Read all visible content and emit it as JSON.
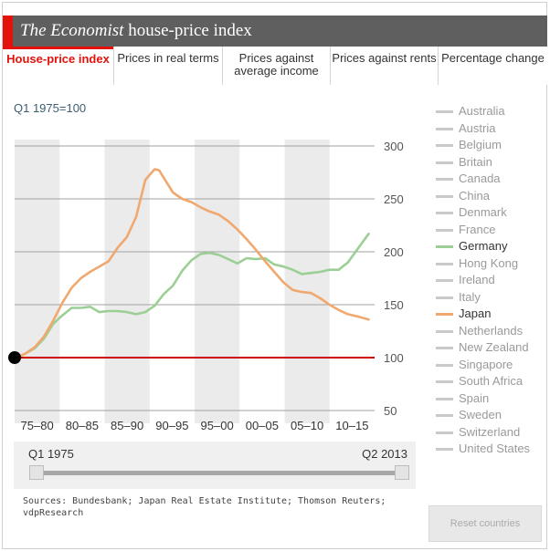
{
  "header": {
    "title_italic": "The Economist",
    "title_rest": " house-price index"
  },
  "tabs": [
    {
      "label": "House-price index",
      "active": true
    },
    {
      "label": "Prices in real terms",
      "active": false
    },
    {
      "label": "Prices against average income",
      "active": false
    },
    {
      "label": "Prices against rents",
      "active": false
    },
    {
      "label": "Percentage change",
      "active": false
    }
  ],
  "chart_data": {
    "type": "line",
    "ylabel": "Q1 1975=100",
    "yticks": [
      300,
      250,
      200,
      150,
      100,
      50
    ],
    "ylim": [
      50,
      300
    ],
    "xlim": [
      1975,
      2013.5
    ],
    "x_bands": [
      "75–80",
      "80–85",
      "85–90",
      "90–95",
      "95–00",
      "00–05",
      "05–10",
      "10–15"
    ],
    "grid": true,
    "baseline": 100,
    "series": [
      {
        "name": "Germany",
        "color": "#9ccf95",
        "x": [
          1975,
          1976,
          1977,
          1978,
          1979,
          1980,
          1981,
          1982,
          1983,
          1984,
          1985,
          1986,
          1987,
          1988,
          1989,
          1990,
          1991,
          1992,
          1993,
          1994,
          1995,
          1996,
          1997,
          1998,
          1999,
          2000,
          2001,
          2002,
          2003,
          2004,
          2005,
          2006,
          2007,
          2008,
          2009,
          2010,
          2011,
          2012,
          2012.5,
          2013.25
        ],
        "y": [
          100,
          104,
          109,
          118,
          132,
          140,
          147,
          147,
          148,
          143,
          144,
          144,
          143,
          141,
          143,
          149,
          160,
          168,
          182,
          192,
          198,
          199,
          197,
          193,
          189,
          194,
          193,
          194,
          188,
          186,
          183,
          179,
          180,
          181,
          183,
          183,
          190,
          202,
          208,
          217
        ]
      },
      {
        "name": "Japan",
        "color": "#f0a86f",
        "x": [
          1975,
          1976,
          1977,
          1978,
          1979,
          1980,
          1981,
          1982,
          1983,
          1984,
          1985,
          1986,
          1987,
          1988,
          1989,
          1990,
          1990.5,
          1991,
          1992,
          1993,
          1994,
          1995,
          1996,
          1997,
          1998,
          1999,
          2000,
          2001,
          2002,
          2003,
          2004,
          2005,
          2006,
          2007,
          2008,
          2009,
          2010,
          2011,
          2012,
          2013.25
        ],
        "y": [
          100,
          104,
          110,
          120,
          135,
          152,
          166,
          175,
          181,
          186,
          191,
          204,
          214,
          233,
          268,
          278,
          277,
          270,
          256,
          250,
          247,
          242,
          238,
          235,
          229,
          221,
          212,
          202,
          191,
          181,
          171,
          164,
          162,
          161,
          156,
          150,
          145,
          141,
          139,
          136
        ]
      }
    ]
  },
  "legend": [
    {
      "name": "Australia",
      "active": false,
      "color": "#c9c9c9"
    },
    {
      "name": "Austria",
      "active": false,
      "color": "#c9c9c9"
    },
    {
      "name": "Belgium",
      "active": false,
      "color": "#c9c9c9"
    },
    {
      "name": "Britain",
      "active": false,
      "color": "#c9c9c9"
    },
    {
      "name": "Canada",
      "active": false,
      "color": "#c9c9c9"
    },
    {
      "name": "China",
      "active": false,
      "color": "#c9c9c9"
    },
    {
      "name": "Denmark",
      "active": false,
      "color": "#c9c9c9"
    },
    {
      "name": "France",
      "active": false,
      "color": "#c9c9c9"
    },
    {
      "name": "Germany",
      "active": true,
      "color": "#9ccf95"
    },
    {
      "name": "Hong Kong",
      "active": false,
      "color": "#c9c9c9"
    },
    {
      "name": "Ireland",
      "active": false,
      "color": "#c9c9c9"
    },
    {
      "name": "Italy",
      "active": false,
      "color": "#c9c9c9"
    },
    {
      "name": "Japan",
      "active": true,
      "color": "#f0a86f"
    },
    {
      "name": "Netherlands",
      "active": false,
      "color": "#c9c9c9"
    },
    {
      "name": "New Zealand",
      "active": false,
      "color": "#c9c9c9"
    },
    {
      "name": "Singapore",
      "active": false,
      "color": "#c9c9c9"
    },
    {
      "name": "South Africa",
      "active": false,
      "color": "#c9c9c9"
    },
    {
      "name": "Spain",
      "active": false,
      "color": "#c9c9c9"
    },
    {
      "name": "Sweden",
      "active": false,
      "color": "#c9c9c9"
    },
    {
      "name": "Switzerland",
      "active": false,
      "color": "#c9c9c9"
    },
    {
      "name": "United States",
      "active": false,
      "color": "#c9c9c9"
    }
  ],
  "slider": {
    "start_label": "Q1 1975",
    "end_label": "Q2 2013"
  },
  "sources": "Sources: Bundesbank; Japan Real Estate Institute; Thomson Reuters; vdpResearch",
  "reset_label": "Reset countries",
  "colors": {
    "accent": "#e3120b",
    "baseline": "#cc0000",
    "band": "#ebebeb",
    "grid": "#a0a0a0"
  }
}
